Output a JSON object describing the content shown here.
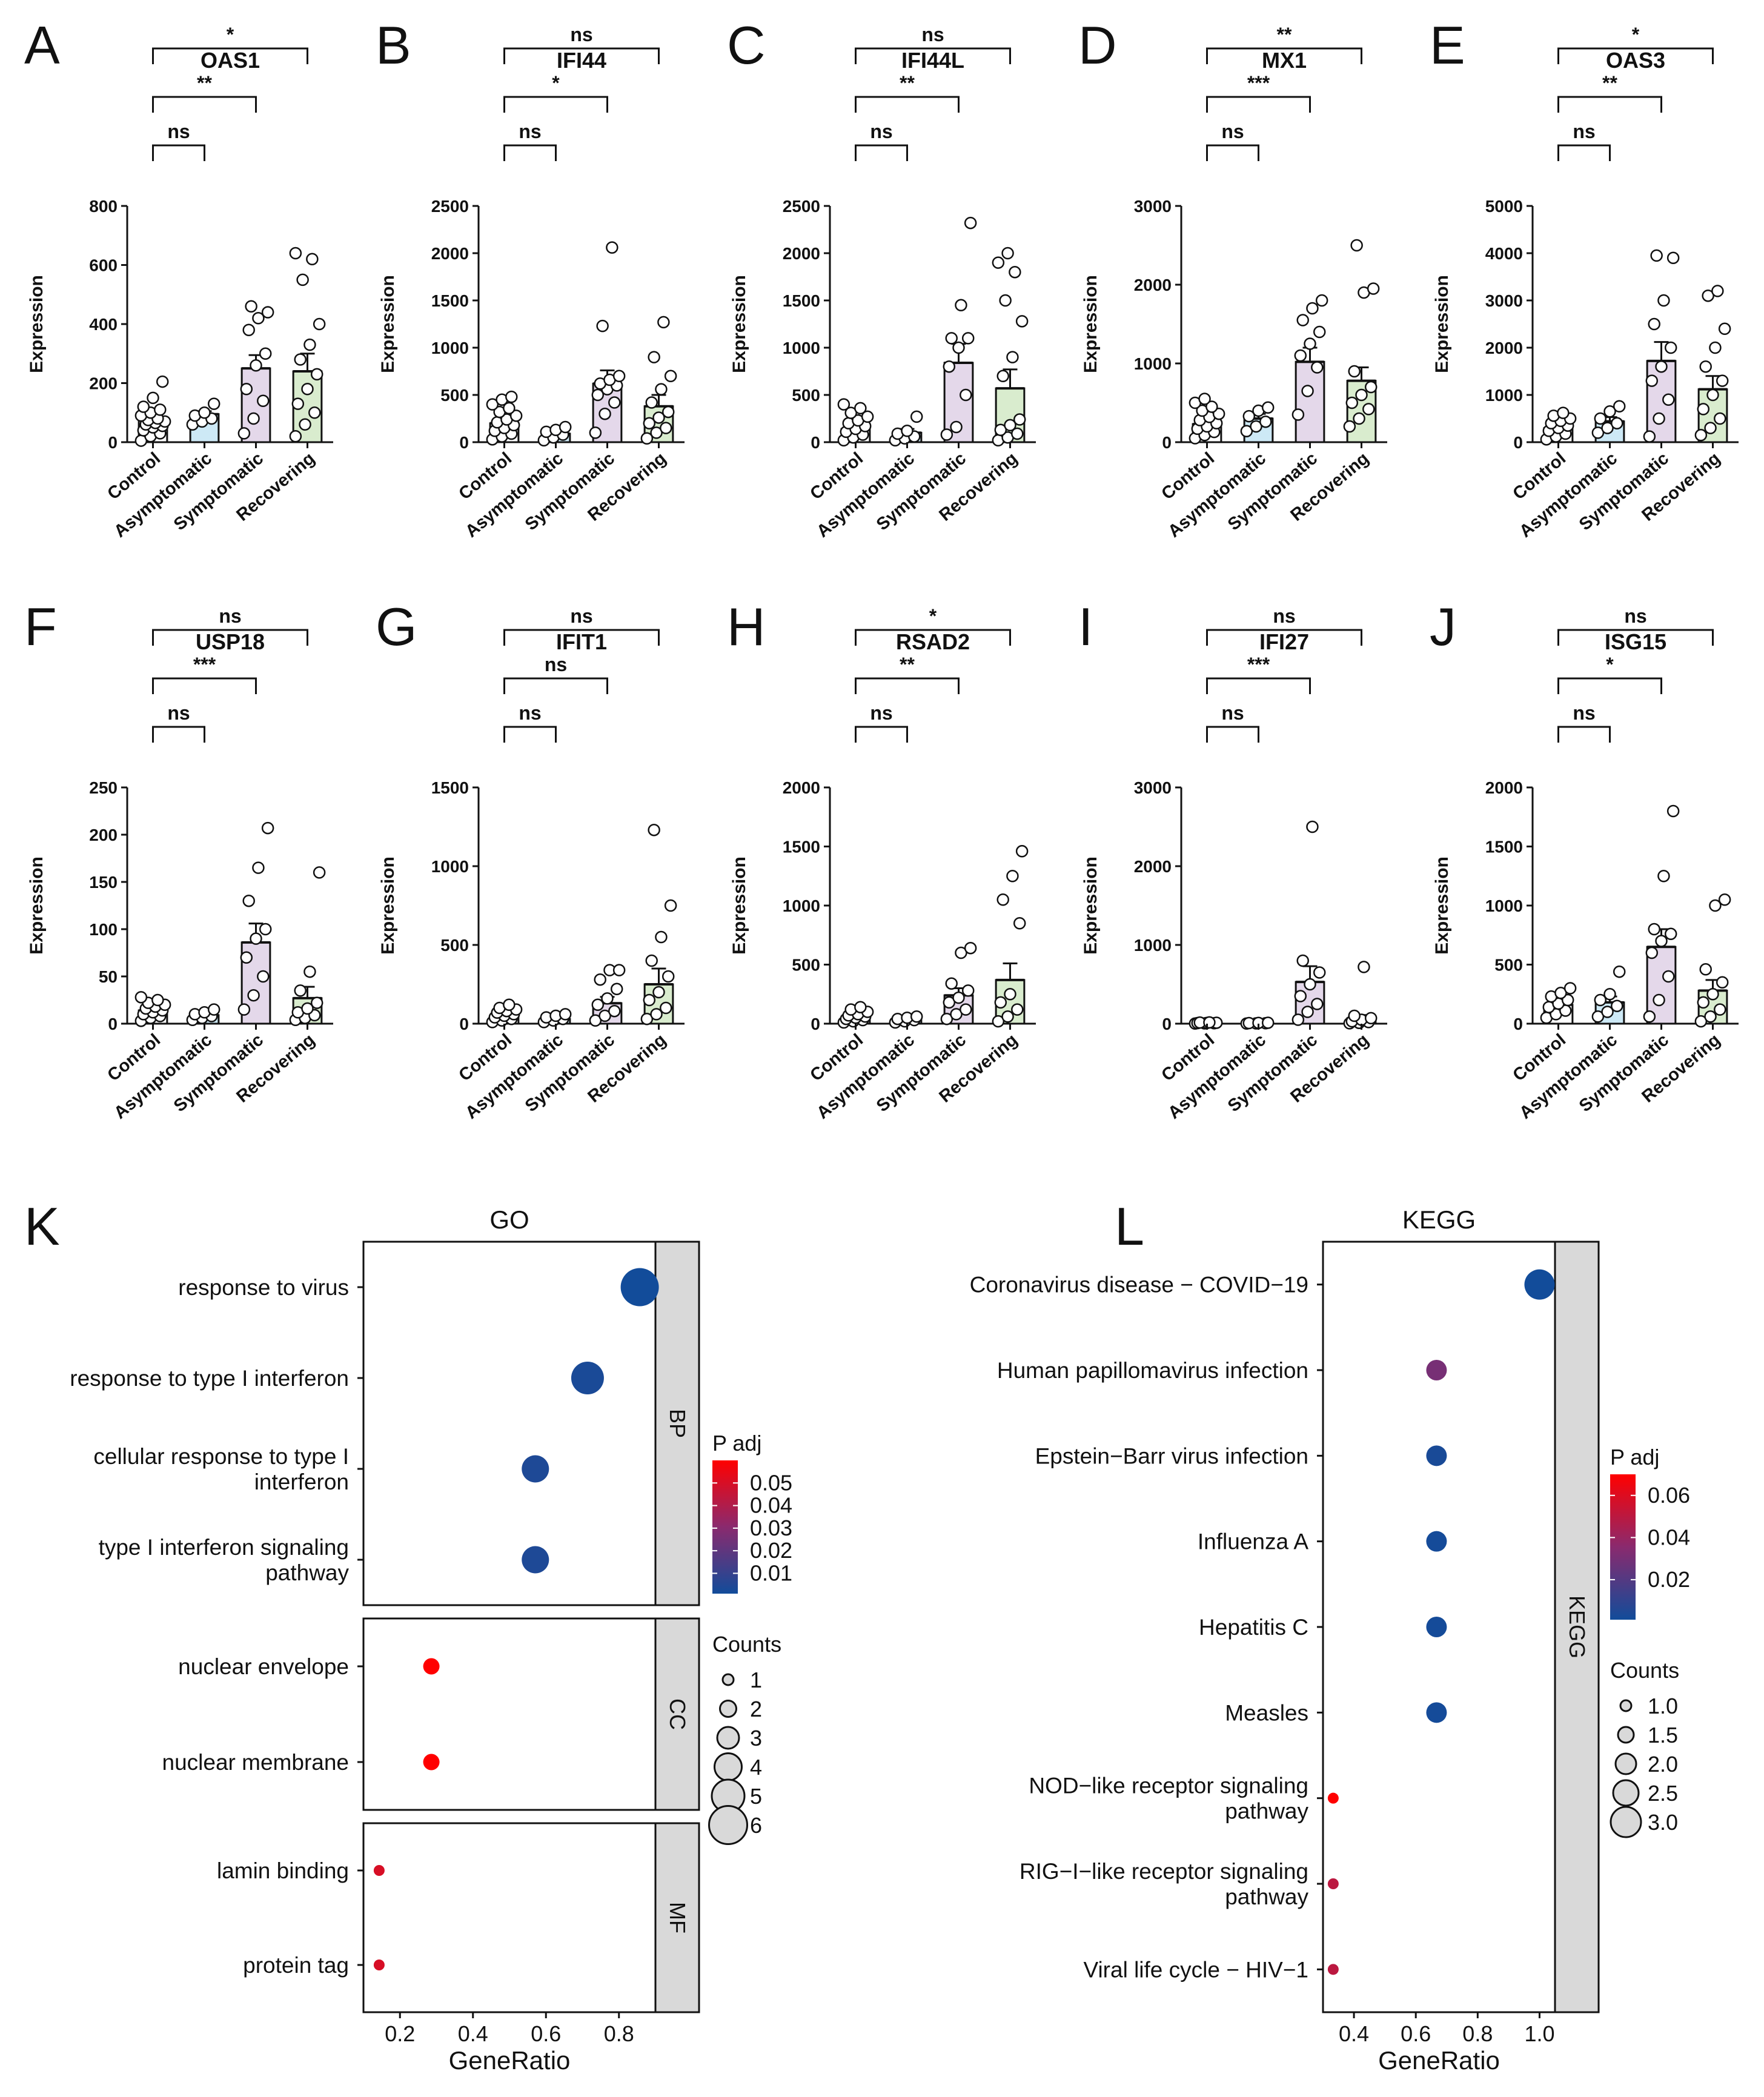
{
  "colors": {
    "control": "#ffffff",
    "asymptomatic": "#cde9f6",
    "symptomatic": "#e4d8ea",
    "recovering": "#d9ecce",
    "pHigh": "#ff0000",
    "pMid": "#8a2a6e",
    "pLow": "#124c9a",
    "facet": "#d9d9d9"
  },
  "chart_data": [
    {
      "type": "bar",
      "panel": "A",
      "title": "OAS1",
      "categories": [
        "Control",
        "Asymptomatic",
        "Symptomatic",
        "Recovering"
      ],
      "values": [
        75,
        95,
        250,
        240
      ],
      "sem": [
        15,
        10,
        45,
        60
      ],
      "ylabel": "Expression",
      "ylim": [
        0,
        800
      ],
      "yticks": [
        0,
        200,
        400,
        600,
        800
      ],
      "points": [
        [
          5,
          20,
          30,
          40,
          50,
          55,
          60,
          65,
          70,
          75,
          80,
          90,
          100,
          110,
          120,
          150,
          205
        ],
        [
          60,
          70,
          80,
          90,
          100,
          130
        ],
        [
          30,
          80,
          140,
          180,
          260,
          300,
          380,
          420,
          440,
          460
        ],
        [
          20,
          60,
          100,
          130,
          180,
          230,
          280,
          330,
          400,
          550,
          620,
          640
        ]
      ],
      "comparisons": [
        {
          "groups": [
            0,
            1
          ],
          "label": "ns"
        },
        {
          "groups": [
            0,
            2
          ],
          "label": "**"
        },
        {
          "groups": [
            0,
            3
          ],
          "label": "*"
        }
      ]
    },
    {
      "type": "bar",
      "panel": "B",
      "title": "IFI44",
      "categories": [
        "Control",
        "Asymptomatic",
        "Symptomatic",
        "Recovering"
      ],
      "values": [
        200,
        90,
        620,
        380
      ],
      "sem": [
        40,
        20,
        140,
        120
      ],
      "ylabel": "Expression",
      "ylim": [
        0,
        2500
      ],
      "yticks": [
        0,
        500,
        1000,
        1500,
        2000,
        2500
      ],
      "points": [
        [
          30,
          60,
          90,
          120,
          150,
          180,
          210,
          240,
          280,
          320,
          360,
          400,
          450,
          480
        ],
        [
          20,
          50,
          80,
          110,
          130,
          160
        ],
        [
          100,
          300,
          420,
          500,
          560,
          600,
          620,
          660,
          700,
          1230,
          2060
        ],
        [
          40,
          100,
          150,
          200,
          260,
          320,
          420,
          560,
          700,
          900,
          1270
        ]
      ],
      "comparisons": [
        {
          "groups": [
            0,
            1
          ],
          "label": "ns"
        },
        {
          "groups": [
            0,
            2
          ],
          "label": "*"
        },
        {
          "groups": [
            0,
            3
          ],
          "label": "ns"
        }
      ]
    },
    {
      "type": "bar",
      "panel": "C",
      "title": "IFI44L",
      "categories": [
        "Control",
        "Asymptomatic",
        "Symptomatic",
        "Recovering"
      ],
      "values": [
        140,
        100,
        840,
        570
      ],
      "sem": [
        35,
        40,
        200,
        200
      ],
      "ylabel": "Expression",
      "ylim": [
        0,
        2500
      ],
      "yticks": [
        0,
        500,
        1000,
        1500,
        2000,
        2500
      ],
      "points": [
        [
          20,
          50,
          80,
          110,
          140,
          170,
          200,
          230,
          270,
          310,
          360,
          400
        ],
        [
          20,
          40,
          60,
          90,
          120,
          270
        ],
        [
          80,
          160,
          500,
          800,
          1000,
          1100,
          1100,
          1450,
          2320
        ],
        [
          20,
          50,
          90,
          130,
          180,
          240,
          700,
          900,
          1280,
          1500,
          1800,
          1900,
          2000
        ]
      ],
      "comparisons": [
        {
          "groups": [
            0,
            1
          ],
          "label": "ns"
        },
        {
          "groups": [
            0,
            2
          ],
          "label": "**"
        },
        {
          "groups": [
            0,
            3
          ],
          "label": "ns"
        }
      ]
    },
    {
      "type": "bar",
      "panel": "D",
      "title": "MX1",
      "categories": [
        "Control",
        "Asymptomatic",
        "Symptomatic",
        "Recovering"
      ],
      "values": [
        230,
        300,
        1020,
        780
      ],
      "sem": [
        45,
        60,
        180,
        170
      ],
      "ylabel": "Expression",
      "ylim": [
        0,
        3000
      ],
      "yticks": [
        0,
        1000,
        2000,
        3000
      ],
      "points": [
        [
          50,
          90,
          130,
          170,
          200,
          240,
          280,
          320,
          360,
          400,
          450,
          500,
          550
        ],
        [
          140,
          200,
          260,
          330,
          400,
          440
        ],
        [
          350,
          650,
          950,
          1100,
          1250,
          1400,
          1550,
          1700,
          1800
        ],
        [
          200,
          300,
          420,
          500,
          600,
          700,
          900,
          1900,
          1950,
          2500
        ]
      ],
      "comparisons": [
        {
          "groups": [
            0,
            1
          ],
          "label": "ns"
        },
        {
          "groups": [
            0,
            2
          ],
          "label": "***"
        },
        {
          "groups": [
            0,
            3
          ],
          "label": "**"
        }
      ]
    },
    {
      "type": "bar",
      "panel": "E",
      "title": "OAS3",
      "categories": [
        "Control",
        "Asymptomatic",
        "Symptomatic",
        "Recovering"
      ],
      "values": [
        300,
        440,
        1720,
        1120
      ],
      "sem": [
        60,
        90,
        400,
        280
      ],
      "ylabel": "Expression",
      "ylim": [
        0,
        5000
      ],
      "yticks": [
        0,
        1000,
        2000,
        3000,
        4000,
        5000
      ],
      "points": [
        [
          60,
          120,
          180,
          240,
          300,
          350,
          400,
          450,
          500,
          560,
          620
        ],
        [
          200,
          300,
          400,
          500,
          650,
          760
        ],
        [
          120,
          500,
          900,
          1300,
          1600,
          2000,
          2500,
          3000,
          3900,
          3950
        ],
        [
          150,
          300,
          500,
          700,
          1000,
          1300,
          1600,
          2000,
          2400,
          3100,
          3200
        ]
      ],
      "comparisons": [
        {
          "groups": [
            0,
            1
          ],
          "label": "ns"
        },
        {
          "groups": [
            0,
            2
          ],
          "label": "**"
        },
        {
          "groups": [
            0,
            3
          ],
          "label": "*"
        }
      ]
    },
    {
      "type": "bar",
      "panel": "F",
      "title": "USP18",
      "categories": [
        "Control",
        "Asymptomatic",
        "Symptomatic",
        "Recovering"
      ],
      "values": [
        14,
        9,
        86,
        27
      ],
      "sem": [
        2,
        2,
        20,
        12
      ],
      "ylabel": "Expression",
      "ylim": [
        0,
        250
      ],
      "yticks": [
        0,
        50,
        100,
        150,
        200,
        250
      ],
      "points": [
        [
          3,
          6,
          8,
          10,
          12,
          14,
          16,
          18,
          20,
          22,
          25,
          28
        ],
        [
          4,
          6,
          8,
          10,
          12,
          15
        ],
        [
          15,
          30,
          50,
          70,
          90,
          100,
          130,
          165,
          207
        ],
        [
          4,
          6,
          9,
          12,
          16,
          22,
          35,
          55,
          160
        ]
      ],
      "comparisons": [
        {
          "groups": [
            0,
            1
          ],
          "label": "ns"
        },
        {
          "groups": [
            0,
            2
          ],
          "label": "***"
        },
        {
          "groups": [
            0,
            3
          ],
          "label": "ns"
        }
      ]
    },
    {
      "type": "bar",
      "panel": "G",
      "title": "IFIT1",
      "categories": [
        "Control",
        "Asymptomatic",
        "Symptomatic",
        "Recovering"
      ],
      "values": [
        50,
        30,
        130,
        250
      ],
      "sem": [
        10,
        8,
        40,
        100
      ],
      "ylabel": "Expression",
      "ylim": [
        0,
        1500
      ],
      "yticks": [
        0,
        500,
        1000,
        1500
      ],
      "points": [
        [
          10,
          20,
          30,
          40,
          50,
          60,
          70,
          80,
          90,
          100,
          120
        ],
        [
          10,
          20,
          30,
          40,
          50,
          60
        ],
        [
          20,
          50,
          80,
          120,
          160,
          220,
          280,
          340,
          340
        ],
        [
          30,
          60,
          100,
          150,
          200,
          300,
          400,
          550,
          750,
          1230
        ]
      ],
      "comparisons": [
        {
          "groups": [
            0,
            1
          ],
          "label": "ns"
        },
        {
          "groups": [
            0,
            2
          ],
          "label": "ns"
        },
        {
          "groups": [
            0,
            3
          ],
          "label": "ns"
        }
      ]
    },
    {
      "type": "bar",
      "panel": "H",
      "title": "RSAD2",
      "categories": [
        "Control",
        "Asymptomatic",
        "Symptomatic",
        "Recovering"
      ],
      "values": [
        60,
        45,
        240,
        370
      ],
      "sem": [
        12,
        10,
        60,
        140
      ],
      "ylabel": "Expression",
      "ylim": [
        0,
        2000
      ],
      "yticks": [
        0,
        500,
        1000,
        1500,
        2000
      ],
      "points": [
        [
          10,
          20,
          30,
          40,
          50,
          60,
          70,
          80,
          100,
          120,
          140
        ],
        [
          10,
          20,
          30,
          40,
          50,
          60
        ],
        [
          40,
          80,
          120,
          180,
          220,
          280,
          340,
          600,
          640
        ],
        [
          20,
          60,
          120,
          180,
          250,
          850,
          1050,
          1250,
          1460
        ]
      ],
      "comparisons": [
        {
          "groups": [
            0,
            1
          ],
          "label": "ns"
        },
        {
          "groups": [
            0,
            2
          ],
          "label": "**"
        },
        {
          "groups": [
            0,
            3
          ],
          "label": "*"
        }
      ]
    },
    {
      "type": "bar",
      "panel": "I",
      "title": "IFI27",
      "categories": [
        "Control",
        "Asymptomatic",
        "Symptomatic",
        "Recovering"
      ],
      "values": [
        10,
        8,
        530,
        70
      ],
      "sem": [
        3,
        3,
        200,
        40
      ],
      "ylabel": "Expression",
      "ylim": [
        0,
        3000
      ],
      "yticks": [
        0,
        1000,
        2000,
        3000
      ],
      "points": [
        [
          2,
          4,
          6,
          8,
          10,
          12,
          14,
          16
        ],
        [
          2,
          4,
          6,
          8,
          10,
          12
        ],
        [
          50,
          150,
          250,
          350,
          500,
          650,
          800,
          2500
        ],
        [
          5,
          10,
          20,
          30,
          50,
          70,
          100,
          720
        ]
      ],
      "comparisons": [
        {
          "groups": [
            0,
            1
          ],
          "label": "ns"
        },
        {
          "groups": [
            0,
            2
          ],
          "label": "***"
        },
        {
          "groups": [
            0,
            3
          ],
          "label": "ns"
        }
      ]
    },
    {
      "type": "bar",
      "panel": "J",
      "title": "ISG15",
      "categories": [
        "Control",
        "Asymptomatic",
        "Symptomatic",
        "Recovering"
      ],
      "values": [
        160,
        180,
        650,
        280
      ],
      "sem": [
        30,
        50,
        150,
        90
      ],
      "ylabel": "Expression",
      "ylim": [
        0,
        2000
      ],
      "yticks": [
        0,
        500,
        1000,
        1500,
        2000
      ],
      "points": [
        [
          50,
          80,
          110,
          140,
          170,
          200,
          230,
          260,
          300
        ],
        [
          60,
          100,
          150,
          200,
          250,
          440
        ],
        [
          60,
          200,
          400,
          600,
          700,
          760,
          800,
          1250,
          1800
        ],
        [
          20,
          60,
          120,
          180,
          250,
          350,
          460,
          1000,
          1050
        ]
      ],
      "comparisons": [
        {
          "groups": [
            0,
            1
          ],
          "label": "ns"
        },
        {
          "groups": [
            0,
            2
          ],
          "label": "*"
        },
        {
          "groups": [
            0,
            3
          ],
          "label": "ns"
        }
      ]
    },
    {
      "type": "scatter",
      "panel": "K",
      "title": "GO",
      "xlabel": "GeneRatio",
      "xlim": [
        0.1,
        0.9
      ],
      "xticks": [
        0.2,
        0.4,
        0.6,
        0.8
      ],
      "facets": [
        {
          "name": "BP",
          "terms": [
            {
              "label": "response to virus",
              "ratio": 0.857,
              "count": 6,
              "padj": 0.001
            },
            {
              "label": "response to type I interferon",
              "ratio": 0.714,
              "count": 5,
              "padj": 0.003
            },
            {
              "label": "cellular response to type I interferon",
              "ratio": 0.571,
              "count": 4,
              "padj": 0.004
            },
            {
              "label": "type I interferon signaling pathway",
              "ratio": 0.571,
              "count": 4,
              "padj": 0.004
            }
          ]
        },
        {
          "name": "CC",
          "terms": [
            {
              "label": "nuclear envelope",
              "ratio": 0.286,
              "count": 2,
              "padj": 0.06
            },
            {
              "label": "nuclear membrane",
              "ratio": 0.286,
              "count": 2,
              "padj": 0.06
            }
          ]
        },
        {
          "name": "MF",
          "terms": [
            {
              "label": "lamin binding",
              "ratio": 0.143,
              "count": 1,
              "padj": 0.05
            },
            {
              "label": "protein tag",
              "ratio": 0.143,
              "count": 1,
              "padj": 0.05
            }
          ]
        }
      ],
      "color_legend": {
        "title": "P adj",
        "ticks": [
          0.05,
          0.04,
          0.03,
          0.02,
          0.01
        ],
        "range": [
          0.001,
          0.06
        ]
      },
      "size_legend": {
        "title": "Counts",
        "values": [
          1,
          2,
          3,
          4,
          5,
          6
        ]
      }
    },
    {
      "type": "scatter",
      "panel": "L",
      "title": "KEGG",
      "xlabel": "GeneRatio",
      "xlim": [
        0.3,
        1.05
      ],
      "xticks": [
        0.4,
        0.6,
        0.8,
        1.0
      ],
      "facets": [
        {
          "name": "KEGG",
          "terms": [
            {
              "label": "Coronavirus disease − COVID−19",
              "ratio": 1.0,
              "count": 3,
              "padj": 0.001
            },
            {
              "label": "Human papillomavirus infection",
              "ratio": 0.667,
              "count": 2,
              "padj": 0.03
            },
            {
              "label": "Epstein−Barr virus infection",
              "ratio": 0.667,
              "count": 2,
              "padj": 0.003
            },
            {
              "label": "Influenza A",
              "ratio": 0.667,
              "count": 2,
              "padj": 0.002
            },
            {
              "label": "Hepatitis C",
              "ratio": 0.667,
              "count": 2,
              "padj": 0.002
            },
            {
              "label": "Measles",
              "ratio": 0.667,
              "count": 2,
              "padj": 0.002
            },
            {
              "label": "NOD−like receptor signaling pathway",
              "ratio": 0.333,
              "count": 1,
              "padj": 0.07
            },
            {
              "label": "RIG−I−like receptor signaling pathway",
              "ratio": 0.333,
              "count": 1,
              "padj": 0.05
            },
            {
              "label": "Viral life cycle − HIV−1",
              "ratio": 0.333,
              "count": 1,
              "padj": 0.05
            }
          ]
        }
      ],
      "color_legend": {
        "title": "P adj",
        "ticks": [
          0.06,
          0.04,
          0.02
        ],
        "range": [
          0.001,
          0.07
        ]
      },
      "size_legend": {
        "title": "Counts",
        "values": [
          "1.0",
          "1.5",
          "2.0",
          "2.5",
          "3.0"
        ]
      }
    }
  ]
}
